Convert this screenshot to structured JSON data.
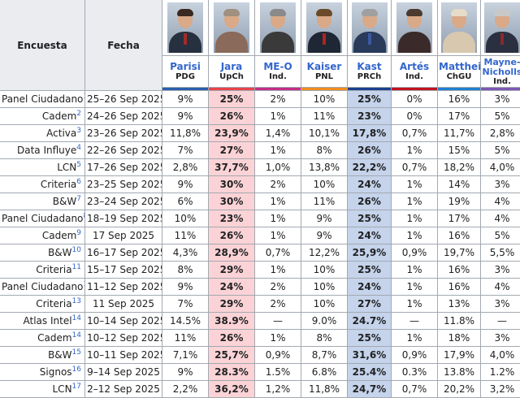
{
  "headers": {
    "poll": "Encuesta",
    "date": "Fecha"
  },
  "candidates": [
    {
      "id": "parisi",
      "name": "Parisi",
      "party": "PDG",
      "color": "#2b5fad"
    },
    {
      "id": "jara",
      "name": "Jara",
      "party": "UpCh",
      "color": "#e8424a"
    },
    {
      "id": "meo",
      "name": "ME-O",
      "party": "Ind.",
      "color": "#c62c87"
    },
    {
      "id": "kaiser",
      "name": "Kaiser",
      "party": "PNL",
      "color": "#f08c1e"
    },
    {
      "id": "kast",
      "name": "Kast",
      "party": "PRCh",
      "color": "#1b3f8f"
    },
    {
      "id": "artes",
      "name": "Artés",
      "party": "Ind.",
      "color": "#c0121c"
    },
    {
      "id": "matthei",
      "name": "Matthei",
      "party": "ChGU",
      "color": "#1f80d0"
    },
    {
      "id": "mayne",
      "name": "Mayne-Nicholls",
      "party": "Ind.",
      "color": "#7e57b5"
    }
  ],
  "rows": [
    {
      "poll": "Panel Ciudadano",
      "ref": "1",
      "date": "25–26 Sep 2025",
      "values": [
        "9%",
        "25%",
        "2%",
        "10%",
        "25%",
        "0%",
        "16%",
        "3%"
      ]
    },
    {
      "poll": "Cadem",
      "ref": "2",
      "date": "24–26 Sep 2025",
      "values": [
        "9%",
        "26%",
        "1%",
        "11%",
        "23%",
        "0%",
        "17%",
        "5%"
      ]
    },
    {
      "poll": "Activa",
      "ref": "3",
      "date": "23–26 Sep 2025",
      "values": [
        "11,8%",
        "23,9%",
        "1,4%",
        "10,1%",
        "17,8%",
        "0,7%",
        "11,7%",
        "2,8%"
      ]
    },
    {
      "poll": "Data Influye",
      "ref": "4",
      "date": "22–26 Sep 2025",
      "values": [
        "7%",
        "27%",
        "1%",
        "8%",
        "26%",
        "1%",
        "15%",
        "5%"
      ]
    },
    {
      "poll": "LCN",
      "ref": "5",
      "date": "17–26 Sep 2025",
      "values": [
        "2,8%",
        "37,7%",
        "1,0%",
        "13,8%",
        "22,2%",
        "0,7%",
        "18,2%",
        "4,0%"
      ]
    },
    {
      "poll": "Criteria",
      "ref": "6",
      "date": "23–25 Sep 2025",
      "values": [
        "9%",
        "30%",
        "2%",
        "10%",
        "24%",
        "1%",
        "14%",
        "3%"
      ]
    },
    {
      "poll": "B&W",
      "ref": "7",
      "date": "23–24 Sep 2025",
      "values": [
        "6%",
        "30%",
        "1%",
        "11%",
        "26%",
        "1%",
        "19%",
        "4%"
      ]
    },
    {
      "poll": "Panel Ciudadano",
      "ref": "8",
      "date": "18–19 Sep 2025",
      "values": [
        "10%",
        "23%",
        "1%",
        "9%",
        "25%",
        "1%",
        "17%",
        "4%"
      ]
    },
    {
      "poll": "Cadem",
      "ref": "9",
      "date": "17 Sep 2025",
      "values": [
        "11%",
        "26%",
        "1%",
        "9%",
        "24%",
        "1%",
        "16%",
        "5%"
      ]
    },
    {
      "poll": "B&W",
      "ref": "10",
      "date": "16–17 Sep 2025",
      "values": [
        "4,3%",
        "28,9%",
        "0,7%",
        "12,2%",
        "25,9%",
        "0,9%",
        "19,7%",
        "5,5%"
      ]
    },
    {
      "poll": "Criteria",
      "ref": "11",
      "date": "15–17 Sep 2025",
      "values": [
        "8%",
        "29%",
        "1%",
        "10%",
        "25%",
        "1%",
        "16%",
        "3%"
      ]
    },
    {
      "poll": "Panel Ciudadano",
      "ref": "12",
      "date": "11–12 Sep 2025",
      "values": [
        "9%",
        "24%",
        "2%",
        "10%",
        "24%",
        "1%",
        "16%",
        "4%"
      ]
    },
    {
      "poll": "Criteria",
      "ref": "13",
      "date": "11 Sep 2025",
      "values": [
        "7%",
        "29%",
        "2%",
        "10%",
        "27%",
        "1%",
        "13%",
        "3%"
      ]
    },
    {
      "poll": "Atlas Intel",
      "ref": "14",
      "date": "10–14 Sep 2025",
      "values": [
        "14.5%",
        "38.9%",
        "—",
        "9.0%",
        "24.7%",
        "—",
        "11.8%",
        "—"
      ]
    },
    {
      "poll": "Cadem",
      "ref": "14",
      "date": "10–12 Sep 2025",
      "values": [
        "11%",
        "26%",
        "1%",
        "8%",
        "25%",
        "1%",
        "18%",
        "3%"
      ]
    },
    {
      "poll": "B&W",
      "ref": "15",
      "date": "10–11 Sep 2025",
      "values": [
        "7,1%",
        "25,7%",
        "0,9%",
        "8,7%",
        "31,6%",
        "0,9%",
        "17,9%",
        "4,0%"
      ]
    },
    {
      "poll": "Signos",
      "ref": "16",
      "date": "9–14 Sep 2025",
      "values": [
        "9%",
        "28.3%",
        "1.5%",
        "6.8%",
        "25.4%",
        "0.3%",
        "13.8%",
        "1.2%"
      ]
    },
    {
      "poll": "LCN",
      "ref": "17",
      "date": "2–12 Sep 2025",
      "values": [
        "2,2%",
        "36,2%",
        "1,2%",
        "11,8%",
        "24,7%",
        "0,7%",
        "20,2%",
        "3,2%"
      ]
    }
  ]
}
